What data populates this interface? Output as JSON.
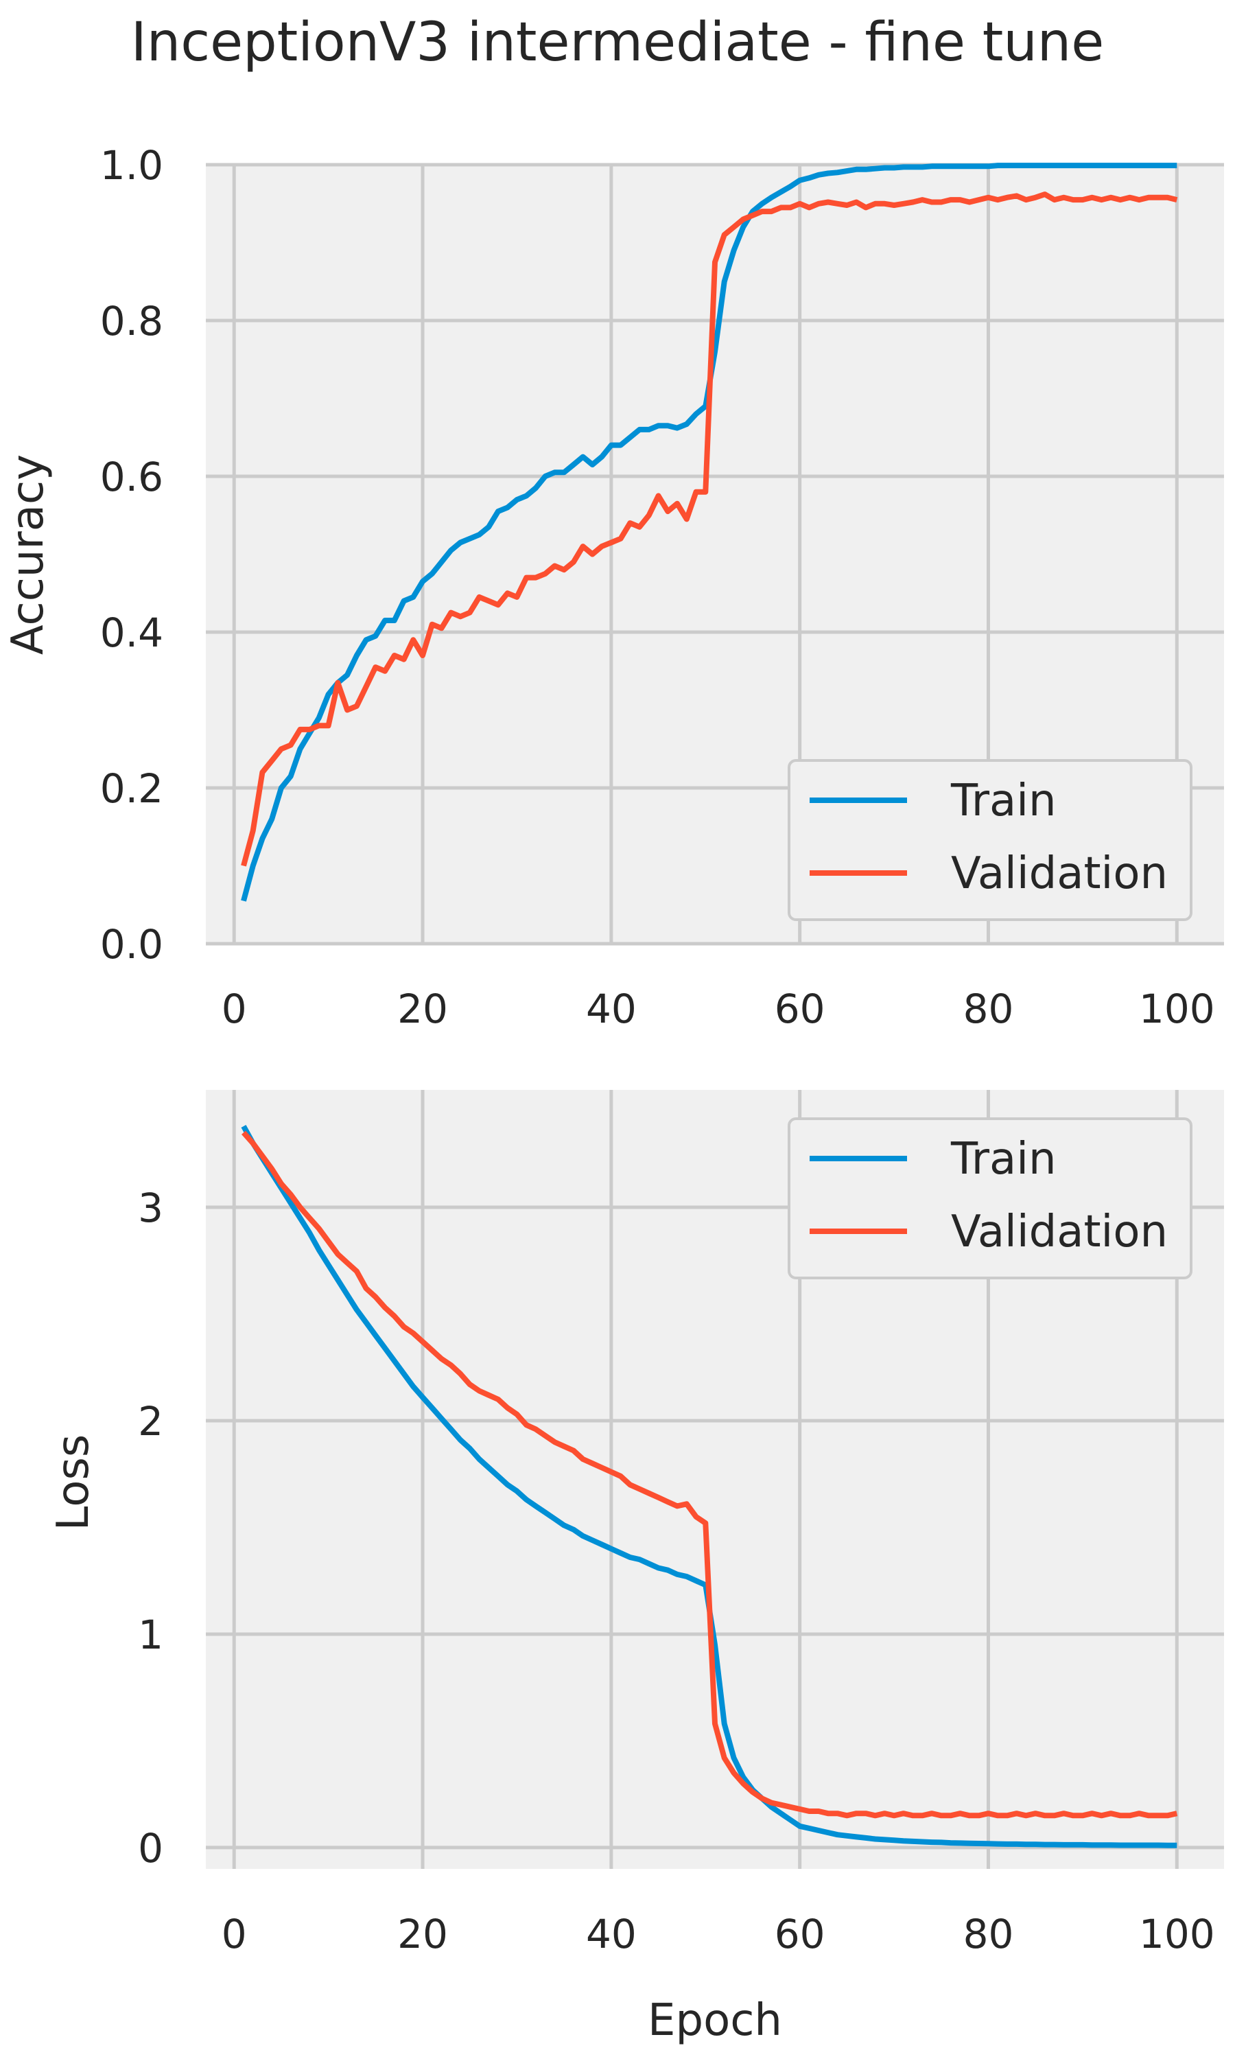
{
  "figure": {
    "title": "InceptionV3 intermediate - fine tune"
  },
  "colors": {
    "train": "#008fd5",
    "validation": "#fc4f30",
    "plot_background": "#f0f0f0",
    "grid": "#cbcbcb",
    "text": "#262626"
  },
  "chart_data": [
    {
      "type": "line",
      "title": "",
      "xlabel": "",
      "ylabel": "Accuracy",
      "xlim": [
        -3,
        105
      ],
      "ylim": [
        0.0,
        1.0
      ],
      "xticks": [
        0,
        20,
        40,
        60,
        80,
        100
      ],
      "yticks": [
        0.0,
        0.2,
        0.4,
        0.6,
        0.8,
        1.0
      ],
      "ytick_labels": [
        "0.0",
        "0.2",
        "0.4",
        "0.6",
        "0.8",
        "1.0"
      ],
      "grid": true,
      "legend": "bottom-right",
      "x": [
        1,
        2,
        3,
        4,
        5,
        6,
        7,
        8,
        9,
        10,
        11,
        12,
        13,
        14,
        15,
        16,
        17,
        18,
        19,
        20,
        21,
        22,
        23,
        24,
        25,
        26,
        27,
        28,
        29,
        30,
        31,
        32,
        33,
        34,
        35,
        36,
        37,
        38,
        39,
        40,
        41,
        42,
        43,
        44,
        45,
        46,
        47,
        48,
        49,
        50,
        51,
        52,
        53,
        54,
        55,
        56,
        57,
        58,
        59,
        60,
        61,
        62,
        63,
        64,
        65,
        66,
        67,
        68,
        69,
        70,
        71,
        72,
        73,
        74,
        75,
        76,
        77,
        78,
        79,
        80,
        81,
        82,
        83,
        84,
        85,
        86,
        87,
        88,
        89,
        90,
        91,
        92,
        93,
        94,
        95,
        96,
        97,
        98,
        99,
        100
      ],
      "series": [
        {
          "name": "Train",
          "values": [
            0.055,
            0.1,
            0.135,
            0.16,
            0.2,
            0.215,
            0.25,
            0.27,
            0.29,
            0.32,
            0.335,
            0.345,
            0.37,
            0.39,
            0.395,
            0.415,
            0.415,
            0.44,
            0.445,
            0.465,
            0.475,
            0.49,
            0.505,
            0.515,
            0.52,
            0.525,
            0.535,
            0.555,
            0.56,
            0.57,
            0.575,
            0.585,
            0.6,
            0.605,
            0.605,
            0.615,
            0.625,
            0.615,
            0.625,
            0.64,
            0.64,
            0.65,
            0.66,
            0.66,
            0.665,
            0.665,
            0.662,
            0.667,
            0.68,
            0.69,
            0.76,
            0.85,
            0.89,
            0.92,
            0.94,
            0.95,
            0.958,
            0.965,
            0.972,
            0.98,
            0.983,
            0.987,
            0.989,
            0.99,
            0.992,
            0.994,
            0.994,
            0.995,
            0.996,
            0.996,
            0.997,
            0.997,
            0.997,
            0.998,
            0.998,
            0.998,
            0.998,
            0.998,
            0.998,
            0.998,
            0.999,
            0.999,
            0.999,
            0.999,
            0.999,
            0.999,
            0.999,
            0.999,
            0.999,
            0.999,
            0.999,
            0.999,
            0.999,
            0.999,
            0.999,
            0.999,
            0.999,
            0.999,
            0.999,
            0.999
          ]
        },
        {
          "name": "Validation",
          "values": [
            0.1,
            0.145,
            0.22,
            0.235,
            0.25,
            0.255,
            0.275,
            0.275,
            0.28,
            0.28,
            0.335,
            0.3,
            0.305,
            0.33,
            0.355,
            0.35,
            0.37,
            0.365,
            0.39,
            0.37,
            0.41,
            0.405,
            0.425,
            0.42,
            0.425,
            0.445,
            0.44,
            0.435,
            0.45,
            0.445,
            0.47,
            0.47,
            0.475,
            0.485,
            0.48,
            0.49,
            0.51,
            0.5,
            0.51,
            0.515,
            0.52,
            0.54,
            0.535,
            0.55,
            0.575,
            0.555,
            0.565,
            0.545,
            0.58,
            0.58,
            0.875,
            0.91,
            0.92,
            0.93,
            0.935,
            0.94,
            0.94,
            0.945,
            0.945,
            0.95,
            0.945,
            0.95,
            0.952,
            0.95,
            0.948,
            0.952,
            0.945,
            0.95,
            0.95,
            0.948,
            0.95,
            0.952,
            0.955,
            0.952,
            0.952,
            0.955,
            0.955,
            0.952,
            0.955,
            0.958,
            0.955,
            0.958,
            0.96,
            0.955,
            0.958,
            0.962,
            0.955,
            0.958,
            0.955,
            0.955,
            0.958,
            0.955,
            0.958,
            0.955,
            0.958,
            0.955,
            0.958,
            0.958,
            0.958,
            0.955
          ]
        }
      ]
    },
    {
      "type": "line",
      "title": "",
      "xlabel": "Epoch",
      "ylabel": "Loss",
      "xlim": [
        -3,
        105
      ],
      "ylim": [
        -0.1,
        3.55
      ],
      "xticks": [
        0,
        20,
        40,
        60,
        80,
        100
      ],
      "yticks": [
        0,
        1,
        2,
        3
      ],
      "ytick_labels": [
        "0",
        "1",
        "2",
        "3"
      ],
      "grid": true,
      "legend": "top-right",
      "x": [
        1,
        2,
        3,
        4,
        5,
        6,
        7,
        8,
        9,
        10,
        11,
        12,
        13,
        14,
        15,
        16,
        17,
        18,
        19,
        20,
        21,
        22,
        23,
        24,
        25,
        26,
        27,
        28,
        29,
        30,
        31,
        32,
        33,
        34,
        35,
        36,
        37,
        38,
        39,
        40,
        41,
        42,
        43,
        44,
        45,
        46,
        47,
        48,
        49,
        50,
        51,
        52,
        53,
        54,
        55,
        56,
        57,
        58,
        59,
        60,
        61,
        62,
        63,
        64,
        65,
        66,
        67,
        68,
        69,
        70,
        71,
        72,
        73,
        74,
        75,
        76,
        77,
        78,
        79,
        80,
        81,
        82,
        83,
        84,
        85,
        86,
        87,
        88,
        89,
        90,
        91,
        92,
        93,
        94,
        95,
        96,
        97,
        98,
        99,
        100
      ],
      "series": [
        {
          "name": "Train",
          "values": [
            3.38,
            3.3,
            3.23,
            3.16,
            3.09,
            3.02,
            2.95,
            2.88,
            2.8,
            2.73,
            2.66,
            2.59,
            2.52,
            2.46,
            2.4,
            2.34,
            2.28,
            2.22,
            2.16,
            2.11,
            2.06,
            2.01,
            1.96,
            1.91,
            1.87,
            1.82,
            1.78,
            1.74,
            1.7,
            1.67,
            1.63,
            1.6,
            1.57,
            1.54,
            1.51,
            1.49,
            1.46,
            1.44,
            1.42,
            1.4,
            1.38,
            1.36,
            1.35,
            1.33,
            1.31,
            1.3,
            1.28,
            1.27,
            1.25,
            1.23,
            0.95,
            0.58,
            0.42,
            0.33,
            0.27,
            0.23,
            0.19,
            0.16,
            0.13,
            0.1,
            0.09,
            0.08,
            0.07,
            0.06,
            0.055,
            0.05,
            0.045,
            0.04,
            0.037,
            0.034,
            0.031,
            0.029,
            0.027,
            0.025,
            0.024,
            0.022,
            0.021,
            0.02,
            0.019,
            0.018,
            0.017,
            0.016,
            0.016,
            0.015,
            0.015,
            0.014,
            0.014,
            0.013,
            0.013,
            0.013,
            0.012,
            0.012,
            0.012,
            0.011,
            0.011,
            0.011,
            0.011,
            0.011,
            0.01,
            0.01
          ]
        },
        {
          "name": "Validation",
          "values": [
            3.35,
            3.3,
            3.24,
            3.18,
            3.11,
            3.06,
            3.0,
            2.95,
            2.9,
            2.84,
            2.78,
            2.74,
            2.7,
            2.62,
            2.58,
            2.53,
            2.49,
            2.44,
            2.41,
            2.37,
            2.33,
            2.29,
            2.26,
            2.22,
            2.17,
            2.14,
            2.12,
            2.1,
            2.06,
            2.03,
            1.98,
            1.96,
            1.93,
            1.9,
            1.88,
            1.86,
            1.82,
            1.8,
            1.78,
            1.76,
            1.74,
            1.7,
            1.68,
            1.66,
            1.64,
            1.62,
            1.6,
            1.61,
            1.55,
            1.52,
            0.58,
            0.42,
            0.35,
            0.3,
            0.26,
            0.23,
            0.21,
            0.2,
            0.19,
            0.18,
            0.17,
            0.17,
            0.16,
            0.16,
            0.15,
            0.16,
            0.16,
            0.15,
            0.16,
            0.15,
            0.16,
            0.15,
            0.15,
            0.16,
            0.15,
            0.15,
            0.16,
            0.15,
            0.15,
            0.16,
            0.15,
            0.15,
            0.16,
            0.15,
            0.16,
            0.15,
            0.15,
            0.16,
            0.15,
            0.15,
            0.16,
            0.15,
            0.16,
            0.15,
            0.15,
            0.16,
            0.15,
            0.15,
            0.15,
            0.16
          ]
        }
      ]
    }
  ]
}
